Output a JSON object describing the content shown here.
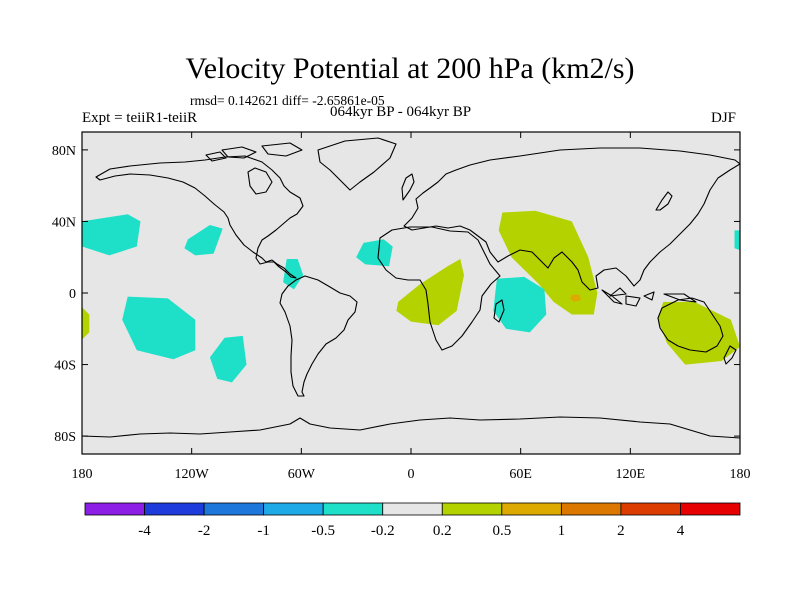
{
  "title": "Velocity Potential at 200 hPa (km2/s)",
  "stats": "rmsd= 0.142621 diff= -2.65861e-05",
  "experiment": "Expt = teiiR1-teiiR",
  "period": "064kyr BP - 064kyr BP",
  "season": "DJF",
  "map": {
    "projection": "cylindrical equidistant",
    "lon_range": [
      -180,
      180
    ],
    "lat_range": [
      -90,
      90
    ],
    "background": "#e6e6e6",
    "coastline_color": "#000000",
    "x_ticks": [
      {
        "lon": -180,
        "label": "180"
      },
      {
        "lon": -120,
        "label": "120W"
      },
      {
        "lon": -60,
        "label": "60W"
      },
      {
        "lon": 0,
        "label": "0"
      },
      {
        "lon": 60,
        "label": "60E"
      },
      {
        "lon": 120,
        "label": "120E"
      },
      {
        "lon": 180,
        "label": "180"
      }
    ],
    "y_ticks": [
      {
        "lat": 80,
        "label": "80N"
      },
      {
        "lat": 40,
        "label": "40N"
      },
      {
        "lat": 0,
        "label": "0"
      },
      {
        "lat": -40,
        "label": "40S"
      },
      {
        "lat": -80,
        "label": "80S"
      }
    ],
    "anomaly_regions": [
      {
        "name": "positive-anomaly-indian-ocean",
        "level": "0.2 to 0.5",
        "color": "#b4d200",
        "points": [
          [
            50,
            45
          ],
          [
            68,
            46
          ],
          [
            88,
            40
          ],
          [
            97,
            20
          ],
          [
            102,
            0
          ],
          [
            100,
            -12
          ],
          [
            88,
            -12
          ],
          [
            78,
            -5
          ],
          [
            70,
            5
          ],
          [
            55,
            20
          ],
          [
            48,
            35
          ]
        ]
      },
      {
        "name": "stronger-anomaly-bay-of-bengal",
        "level": "0.5 to 1",
        "color": "#dcaa00",
        "points": [
          [
            88,
            -1
          ],
          [
            92,
            -1
          ],
          [
            93,
            -4
          ],
          [
            89,
            -5
          ],
          [
            87,
            -3
          ]
        ]
      },
      {
        "name": "positive-anomaly-australia",
        "level": "0.2 to 0.5",
        "color": "#b4d200",
        "points": [
          [
            138,
            -5
          ],
          [
            155,
            -5
          ],
          [
            175,
            -15
          ],
          [
            180,
            -30
          ],
          [
            170,
            -38
          ],
          [
            150,
            -40
          ],
          [
            140,
            -28
          ],
          [
            135,
            -15
          ]
        ]
      },
      {
        "name": "positive-anomaly-central-africa",
        "level": "0.2 to 0.5",
        "color": "#b4d200",
        "points": [
          [
            -7,
            -5
          ],
          [
            5,
            5
          ],
          [
            20,
            15
          ],
          [
            27,
            19
          ],
          [
            29,
            10
          ],
          [
            25,
            -10
          ],
          [
            15,
            -18
          ],
          [
            0,
            -16
          ],
          [
            -8,
            -10
          ]
        ]
      },
      {
        "name": "positive-anomaly-dateline-west",
        "level": "0.2 to 0.5",
        "color": "#b4d200",
        "points": [
          [
            -180,
            -8
          ],
          [
            -176,
            -12
          ],
          [
            -176,
            -22
          ],
          [
            -180,
            -26
          ]
        ]
      },
      {
        "name": "negative-anomaly-south-indian-ocean",
        "level": "-0.5 to -0.2",
        "color": "#1ee0c8",
        "points": [
          [
            47,
            8
          ],
          [
            62,
            9
          ],
          [
            73,
            2
          ],
          [
            74,
            -12
          ],
          [
            65,
            -22
          ],
          [
            52,
            -20
          ],
          [
            45,
            -10
          ]
        ]
      },
      {
        "name": "negative-anomaly-north-pacific",
        "level": "-0.5 to -0.2",
        "color": "#1ee0c8",
        "points": [
          [
            -180,
            40
          ],
          [
            -155,
            44
          ],
          [
            -148,
            40
          ],
          [
            -150,
            26
          ],
          [
            -165,
            21
          ],
          [
            -180,
            26
          ]
        ]
      },
      {
        "name": "negative-anomaly-dateline-east",
        "level": "-0.5 to -0.2",
        "color": "#1ee0c8",
        "points": [
          [
            177,
            35
          ],
          [
            180,
            35
          ],
          [
            180,
            24
          ],
          [
            177,
            25
          ]
        ]
      },
      {
        "name": "negative-anomaly-south-pacific",
        "level": "-0.5 to -0.2",
        "color": "#1ee0c8",
        "points": [
          [
            -155,
            -2
          ],
          [
            -133,
            -3
          ],
          [
            -118,
            -15
          ],
          [
            -118,
            -32
          ],
          [
            -130,
            -37
          ],
          [
            -150,
            -32
          ],
          [
            -158,
            -15
          ]
        ]
      },
      {
        "name": "negative-anomaly-southeast-pacific",
        "level": "-0.5 to -0.2",
        "color": "#1ee0c8",
        "points": [
          [
            -102,
            -25
          ],
          [
            -92,
            -24
          ],
          [
            -90,
            -40
          ],
          [
            -98,
            -50
          ],
          [
            -106,
            -48
          ],
          [
            -110,
            -36
          ]
        ]
      },
      {
        "name": "negative-anomaly-mexico",
        "level": "-0.5 to -0.2",
        "color": "#1ee0c8",
        "points": [
          [
            -122,
            30
          ],
          [
            -110,
            38
          ],
          [
            -103,
            36
          ],
          [
            -108,
            22
          ],
          [
            -118,
            21
          ],
          [
            -124,
            25
          ]
        ]
      },
      {
        "name": "negative-anomaly-caribbean",
        "level": "-0.5 to -0.2",
        "color": "#1ee0c8",
        "points": [
          [
            -68,
            19
          ],
          [
            -62,
            19
          ],
          [
            -59,
            10
          ],
          [
            -64,
            2
          ],
          [
            -70,
            6
          ]
        ]
      },
      {
        "name": "negative-anomaly-west-africa",
        "level": "-0.5 to -0.2",
        "color": "#1ee0c8",
        "points": [
          [
            -26,
            28
          ],
          [
            -15,
            30
          ],
          [
            -10,
            26
          ],
          [
            -12,
            15
          ],
          [
            -25,
            16
          ],
          [
            -30,
            20
          ]
        ]
      }
    ]
  },
  "colorbar": {
    "colors": [
      "#8c1ee6",
      "#1e3cdc",
      "#1e78dc",
      "#1eaae6",
      "#1ee0c8",
      "#e6e6e6",
      "#b4d200",
      "#dcaa00",
      "#dc7800",
      "#dc3c00",
      "#e60000"
    ],
    "labels": [
      "-4",
      "-2",
      "-1",
      "-0.5",
      "-0.2",
      "0.2",
      "0.5",
      "1",
      "2",
      "4"
    ]
  }
}
